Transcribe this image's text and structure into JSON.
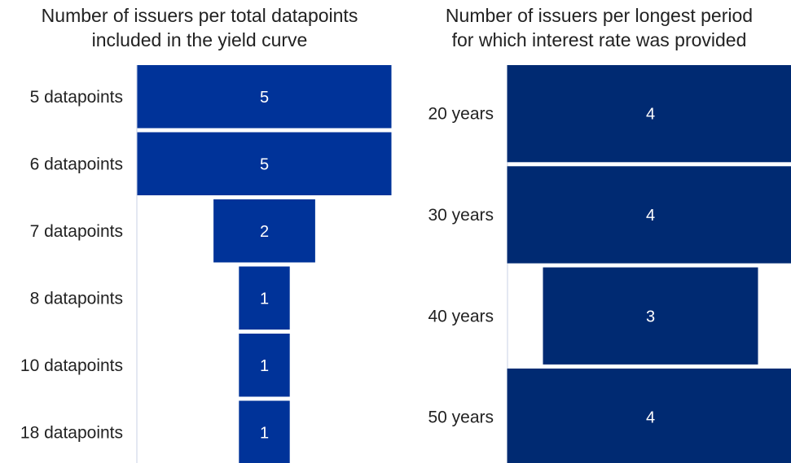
{
  "chart_data": [
    {
      "type": "bar",
      "orientation": "horizontal-funnel",
      "title": [
        "Number of issuers per total datapoints",
        "included in the yield curve"
      ],
      "categories": [
        "5 datapoints",
        "6 datapoints",
        "7 datapoints",
        "8 datapoints",
        "10 datapoints",
        "18 datapoints"
      ],
      "values": [
        5,
        5,
        2,
        1,
        1,
        1
      ],
      "color": "#003399",
      "grid": false
    },
    {
      "type": "bar",
      "orientation": "horizontal-funnel",
      "title": [
        "Number of issuers per longest period",
        "for which interest rate was provided"
      ],
      "categories": [
        "20 years",
        "30 years",
        "40 years",
        "50 years"
      ],
      "values": [
        4,
        4,
        3,
        4
      ],
      "color": "#002a72",
      "grid": false
    }
  ]
}
